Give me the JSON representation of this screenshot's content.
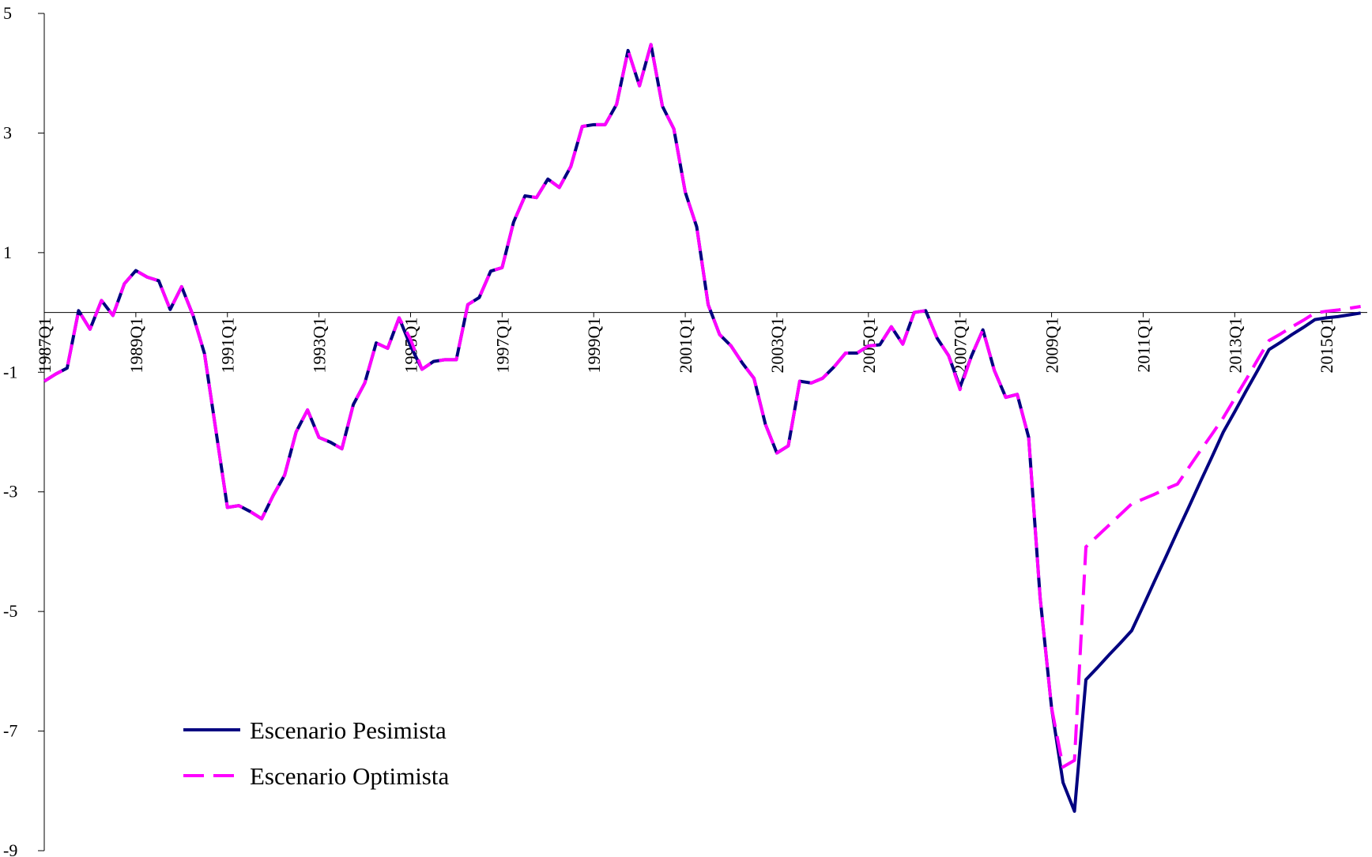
{
  "chart_data": {
    "type": "line",
    "categories": [
      "1987Q1",
      null,
      null,
      null,
      null,
      null,
      null,
      null,
      "1989Q1",
      null,
      null,
      null,
      null,
      null,
      null,
      null,
      "1991Q1",
      null,
      null,
      null,
      null,
      null,
      null,
      null,
      "1993Q1",
      null,
      null,
      null,
      null,
      null,
      null,
      null,
      "1995Q1",
      null,
      null,
      null,
      null,
      null,
      null,
      null,
      "1997Q1",
      null,
      null,
      null,
      null,
      null,
      null,
      null,
      "1999Q1",
      null,
      null,
      null,
      null,
      null,
      null,
      null,
      "2001Q1",
      null,
      null,
      null,
      null,
      null,
      null,
      null,
      "2003Q1",
      null,
      null,
      null,
      null,
      null,
      null,
      null,
      "2005Q1",
      null,
      null,
      null,
      null,
      null,
      null,
      null,
      "2007Q1",
      null,
      null,
      null,
      null,
      null,
      null,
      null,
      "2009Q1",
      null,
      null,
      null,
      null,
      null,
      null,
      null,
      "2011Q1",
      null,
      null,
      null,
      null,
      null,
      null,
      null,
      "2013Q1",
      null,
      null,
      null,
      null,
      null,
      null,
      null,
      "2015Q1",
      null,
      null,
      null
    ],
    "series": [
      {
        "name": "Escenario Pesimista",
        "color": "#000080",
        "linestyle": "solid",
        "values": [
          -1.15,
          -1.03,
          -0.93,
          0.03,
          -0.28,
          0.2,
          -0.05,
          0.48,
          0.7,
          0.59,
          0.53,
          0.05,
          0.43,
          -0.05,
          -0.69,
          -1.98,
          -3.26,
          -3.23,
          -3.33,
          -3.45,
          -3.06,
          -2.72,
          -2.0,
          -1.63,
          -2.09,
          -2.17,
          -2.28,
          -1.54,
          -1.18,
          -0.51,
          -0.6,
          -0.09,
          -0.56,
          -0.95,
          -0.82,
          -0.79,
          -0.79,
          0.13,
          0.25,
          0.69,
          0.75,
          1.51,
          1.95,
          1.92,
          2.23,
          2.09,
          2.44,
          3.11,
          3.14,
          3.14,
          3.48,
          4.38,
          3.79,
          4.48,
          3.45,
          3.07,
          2.01,
          1.43,
          0.13,
          -0.37,
          -0.56,
          -0.85,
          -1.1,
          -1.87,
          -2.35,
          -2.23,
          -1.15,
          -1.18,
          -1.1,
          -0.91,
          -0.68,
          -0.68,
          -0.56,
          -0.54,
          -0.24,
          -0.53,
          0.0,
          0.03,
          -0.43,
          -0.72,
          -1.25,
          -0.73,
          -0.29,
          -0.97,
          -1.42,
          -1.37,
          -2.09,
          -4.77,
          -6.61,
          -7.86,
          -8.34,
          -6.14,
          -5.94,
          -5.73,
          -5.53,
          -5.32,
          -4.91,
          -4.49,
          -4.08,
          -3.66,
          -3.25,
          -2.83,
          -2.42,
          -2.0,
          -1.66,
          -1.31,
          -0.97,
          -0.62,
          -0.5,
          -0.37,
          -0.25,
          -0.12,
          -0.09,
          -0.07,
          -0.04,
          -0.01
        ]
      },
      {
        "name": "Escenario Optimista",
        "color": "#ff00ff",
        "linestyle": "dashed",
        "values": [
          -1.15,
          -1.03,
          -0.93,
          0.03,
          -0.28,
          0.2,
          -0.05,
          0.48,
          0.7,
          0.59,
          0.53,
          0.05,
          0.43,
          -0.05,
          -0.69,
          -1.98,
          -3.26,
          -3.23,
          -3.33,
          -3.45,
          -3.06,
          -2.72,
          -2.0,
          -1.63,
          -2.09,
          -2.17,
          -2.28,
          -1.54,
          -1.18,
          -0.51,
          -0.6,
          -0.09,
          -0.45,
          -0.95,
          -0.82,
          -0.79,
          -0.79,
          0.13,
          0.25,
          0.69,
          0.75,
          1.51,
          1.95,
          1.92,
          2.23,
          2.09,
          2.44,
          3.11,
          3.14,
          3.14,
          3.48,
          4.38,
          3.79,
          4.48,
          3.45,
          3.07,
          2.01,
          1.43,
          0.13,
          -0.37,
          -0.56,
          -0.85,
          -1.1,
          -1.87,
          -2.35,
          -2.23,
          -1.15,
          -1.18,
          -1.1,
          -0.91,
          -0.68,
          -0.68,
          -0.56,
          -0.54,
          -0.24,
          -0.53,
          0.0,
          0.03,
          -0.43,
          -0.72,
          -1.29,
          -0.73,
          -0.29,
          -0.97,
          -1.42,
          -1.37,
          -2.09,
          -4.77,
          -6.61,
          -7.6,
          -7.49,
          -3.92,
          -3.74,
          -3.56,
          -3.38,
          -3.2,
          -3.12,
          -3.04,
          -2.95,
          -2.87,
          -2.59,
          -2.31,
          -2.04,
          -1.76,
          -1.44,
          -1.12,
          -0.79,
          -0.47,
          -0.36,
          -0.24,
          -0.13,
          -0.01,
          0.02,
          0.04,
          0.07,
          0.1
        ]
      }
    ],
    "ylim": [
      -9,
      5
    ],
    "yticks": [
      -9,
      -7,
      -5,
      -3,
      -1,
      1,
      3,
      5
    ],
    "grid": false,
    "legend": "lower left"
  }
}
